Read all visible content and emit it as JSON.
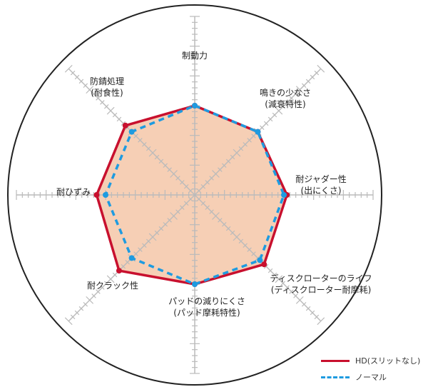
{
  "chart_data": {
    "type": "radar",
    "axes": [
      {
        "line1": "制動力",
        "line2": ""
      },
      {
        "line1": "鳴きの少なさ",
        "line2": "(減衰特性)"
      },
      {
        "line1": "耐ジャダー性",
        "line2": "(出にくさ)"
      },
      {
        "line1": "ディスクローターのライフ",
        "line2": "(ディスクローター耐摩耗)"
      },
      {
        "line1": "パッドの減りにくさ",
        "line2": "(パッド摩耗特性)"
      },
      {
        "line1": "耐クラック性",
        "line2": ""
      },
      {
        "line1": "耐ひずみ",
        "line2": ""
      },
      {
        "line1": "防錆処理",
        "line2": "(耐食性)"
      }
    ],
    "range": [
      0,
      30
    ],
    "series": [
      {
        "name": "HD(スリットなし)",
        "color": "#c8102e",
        "style": "solid",
        "fill": "#f6cfb5",
        "values": [
          15,
          15,
          15.5,
          16.5,
          15,
          18,
          16.5,
          16.5
        ]
      },
      {
        "name": "ノーマル",
        "color": "#1e9be0",
        "style": "dashed",
        "values": [
          15,
          15,
          15,
          15.5,
          15,
          15,
          15,
          15
        ]
      }
    ],
    "legend_position": "bottom-right"
  }
}
